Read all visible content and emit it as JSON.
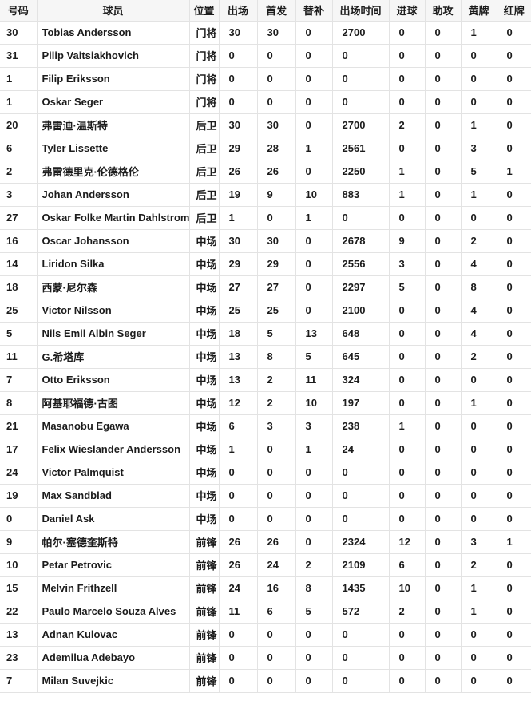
{
  "table": {
    "title": "player-season-statistics",
    "columns": [
      {
        "key": "number",
        "label": "号码"
      },
      {
        "key": "player",
        "label": "球员"
      },
      {
        "key": "position",
        "label": "位置"
      },
      {
        "key": "appearances",
        "label": "出场"
      },
      {
        "key": "starts",
        "label": "首发"
      },
      {
        "key": "sub_appearances",
        "label": "替补"
      },
      {
        "key": "minutes",
        "label": "出场时间"
      },
      {
        "key": "goals",
        "label": "进球"
      },
      {
        "key": "assists",
        "label": "助攻"
      },
      {
        "key": "yellow_cards",
        "label": "黄牌"
      },
      {
        "key": "red_cards",
        "label": "红牌"
      }
    ],
    "rows": [
      [
        "30",
        "Tobias Andersson",
        "门将",
        "30",
        "30",
        "0",
        "2700",
        "0",
        "0",
        "1",
        "0"
      ],
      [
        "31",
        "Pilip Vaitsiakhovich",
        "门将",
        "0",
        "0",
        "0",
        "0",
        "0",
        "0",
        "0",
        "0"
      ],
      [
        "1",
        "Filip Eriksson",
        "门将",
        "0",
        "0",
        "0",
        "0",
        "0",
        "0",
        "0",
        "0"
      ],
      [
        "1",
        "Oskar Seger",
        "门将",
        "0",
        "0",
        "0",
        "0",
        "0",
        "0",
        "0",
        "0"
      ],
      [
        "20",
        "弗雷迪·温斯特",
        "后卫",
        "30",
        "30",
        "0",
        "2700",
        "2",
        "0",
        "1",
        "0"
      ],
      [
        "6",
        "Tyler Lissette",
        "后卫",
        "29",
        "28",
        "1",
        "2561",
        "0",
        "0",
        "3",
        "0"
      ],
      [
        "2",
        "弗雷德里克·伦德格伦",
        "后卫",
        "26",
        "26",
        "0",
        "2250",
        "1",
        "0",
        "5",
        "1"
      ],
      [
        "3",
        "Johan Andersson",
        "后卫",
        "19",
        "9",
        "10",
        "883",
        "1",
        "0",
        "1",
        "0"
      ],
      [
        "27",
        "Oskar Folke Martin Dahlstrom",
        "后卫",
        "1",
        "0",
        "1",
        "0",
        "0",
        "0",
        "0",
        "0"
      ],
      [
        "16",
        "Oscar Johansson",
        "中场",
        "30",
        "30",
        "0",
        "2678",
        "9",
        "0",
        "2",
        "0"
      ],
      [
        "14",
        "Liridon Silka",
        "中场",
        "29",
        "29",
        "0",
        "2556",
        "3",
        "0",
        "4",
        "0"
      ],
      [
        "18",
        "西蒙·尼尔森",
        "中场",
        "27",
        "27",
        "0",
        "2297",
        "5",
        "0",
        "8",
        "0"
      ],
      [
        "25",
        "Victor Nilsson",
        "中场",
        "25",
        "25",
        "0",
        "2100",
        "0",
        "0",
        "4",
        "0"
      ],
      [
        "5",
        "Nils Emil Albin Seger",
        "中场",
        "18",
        "5",
        "13",
        "648",
        "0",
        "0",
        "4",
        "0"
      ],
      [
        "11",
        "G.希塔库",
        "中场",
        "13",
        "8",
        "5",
        "645",
        "0",
        "0",
        "2",
        "0"
      ],
      [
        "7",
        "Otto Eriksson",
        "中场",
        "13",
        "2",
        "11",
        "324",
        "0",
        "0",
        "0",
        "0"
      ],
      [
        "8",
        "阿基耶福德·古图",
        "中场",
        "12",
        "2",
        "10",
        "197",
        "0",
        "0",
        "1",
        "0"
      ],
      [
        "21",
        "Masanobu Egawa",
        "中场",
        "6",
        "3",
        "3",
        "238",
        "1",
        "0",
        "0",
        "0"
      ],
      [
        "17",
        "Felix Wieslander Andersson",
        "中场",
        "1",
        "0",
        "1",
        "24",
        "0",
        "0",
        "0",
        "0"
      ],
      [
        "24",
        "Victor Palmquist",
        "中场",
        "0",
        "0",
        "0",
        "0",
        "0",
        "0",
        "0",
        "0"
      ],
      [
        "19",
        "Max Sandblad",
        "中场",
        "0",
        "0",
        "0",
        "0",
        "0",
        "0",
        "0",
        "0"
      ],
      [
        "0",
        "Daniel Ask",
        "中场",
        "0",
        "0",
        "0",
        "0",
        "0",
        "0",
        "0",
        "0"
      ],
      [
        "9",
        "帕尔·塞德奎斯特",
        "前锋",
        "26",
        "26",
        "0",
        "2324",
        "12",
        "0",
        "3",
        "1"
      ],
      [
        "10",
        "Petar Petrovic",
        "前锋",
        "26",
        "24",
        "2",
        "2109",
        "6",
        "0",
        "2",
        "0"
      ],
      [
        "15",
        "Melvin Frithzell",
        "前锋",
        "24",
        "16",
        "8",
        "1435",
        "10",
        "0",
        "1",
        "0"
      ],
      [
        "22",
        "Paulo Marcelo Souza Alves",
        "前锋",
        "11",
        "6",
        "5",
        "572",
        "2",
        "0",
        "1",
        "0"
      ],
      [
        "13",
        "Adnan Kulovac",
        "前锋",
        "0",
        "0",
        "0",
        "0",
        "0",
        "0",
        "0",
        "0"
      ],
      [
        "23",
        "Ademilua Adebayo",
        "前锋",
        "0",
        "0",
        "0",
        "0",
        "0",
        "0",
        "0",
        "0"
      ],
      [
        "7",
        "Milan Suvejkic",
        "前锋",
        "0",
        "0",
        "0",
        "0",
        "0",
        "0",
        "0",
        "0"
      ]
    ]
  },
  "colors": {
    "header_bg": "#f6f6f6",
    "border": "#e3e3e3",
    "text": "#1c1c1c",
    "row_bg": "#ffffff"
  }
}
